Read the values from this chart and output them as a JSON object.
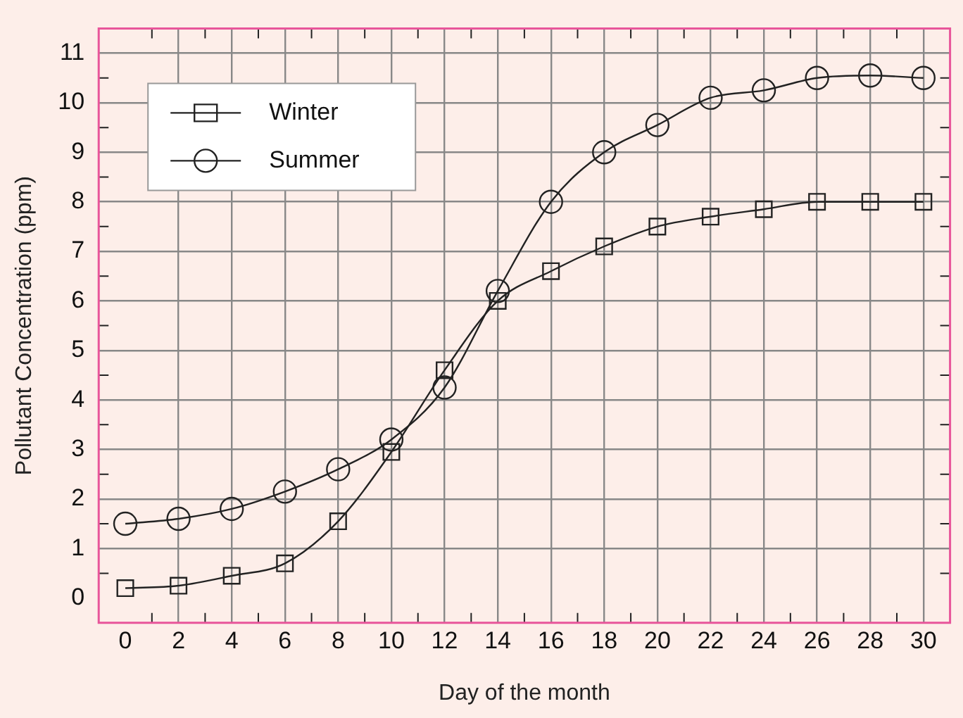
{
  "chart_data": {
    "type": "line",
    "xlabel": "Day of the month",
    "ylabel": "Pollutant Concentration (ppm)",
    "x": [
      0,
      2,
      4,
      6,
      8,
      10,
      12,
      14,
      16,
      18,
      20,
      22,
      24,
      26,
      28,
      30
    ],
    "series": [
      {
        "name": "Winter",
        "color": "#222222",
        "marker": "square",
        "values": [
          0.2,
          0.25,
          0.45,
          0.7,
          1.55,
          2.95,
          4.6,
          6.0,
          6.6,
          7.1,
          7.5,
          7.7,
          7.85,
          8.0,
          8.0,
          8.0
        ]
      },
      {
        "name": "Summer",
        "color": "#222222",
        "marker": "circle",
        "values": [
          1.5,
          1.6,
          1.8,
          2.15,
          2.6,
          3.2,
          4.25,
          6.2,
          8.0,
          9.0,
          9.55,
          10.1,
          10.25,
          10.5,
          10.55,
          10.5
        ]
      }
    ],
    "xlim": [
      -1,
      31
    ],
    "xticks": [
      0,
      {
        "value": 1,
        "label": null
      },
      2,
      {
        "value": 3,
        "label": null
      },
      4,
      {
        "value": 5,
        "label": null
      },
      6,
      {
        "value": 7,
        "label": null
      },
      8,
      {
        "value": 9,
        "label": null
      },
      10,
      {
        "value": 11,
        "label": null
      },
      12,
      {
        "value": 13,
        "label": null
      },
      14,
      {
        "value": 15,
        "label": null
      },
      16,
      {
        "value": 17,
        "label": null
      },
      18,
      {
        "value": 19,
        "label": null
      },
      20,
      {
        "value": 21,
        "label": null
      },
      22,
      {
        "value": 23,
        "label": null
      },
      24,
      {
        "value": 25,
        "label": null
      },
      26,
      {
        "value": 27,
        "label": null
      },
      28,
      {
        "value": 29,
        "label": null
      },
      30
    ],
    "ylim": [
      -0.5,
      11.5
    ],
    "yticks": [
      0,
      {
        "value": 0.5,
        "label": null
      },
      1,
      {
        "value": 1.5,
        "label": null
      },
      2,
      {
        "value": 2.5,
        "label": null
      },
      3,
      {
        "value": 3.5,
        "label": null
      },
      4,
      {
        "value": 4.5,
        "label": null
      },
      5,
      {
        "value": 5.5,
        "label": null
      },
      6,
      {
        "value": 6.5,
        "label": null
      },
      7,
      {
        "value": 7.5,
        "label": null
      },
      8,
      {
        "value": 8.5,
        "label": null
      },
      9,
      {
        "value": 9.5,
        "label": null
      },
      10,
      {
        "value": 10.5,
        "label": null
      },
      11
    ],
    "grid": true,
    "legend": "top left",
    "line_style": "solid"
  }
}
